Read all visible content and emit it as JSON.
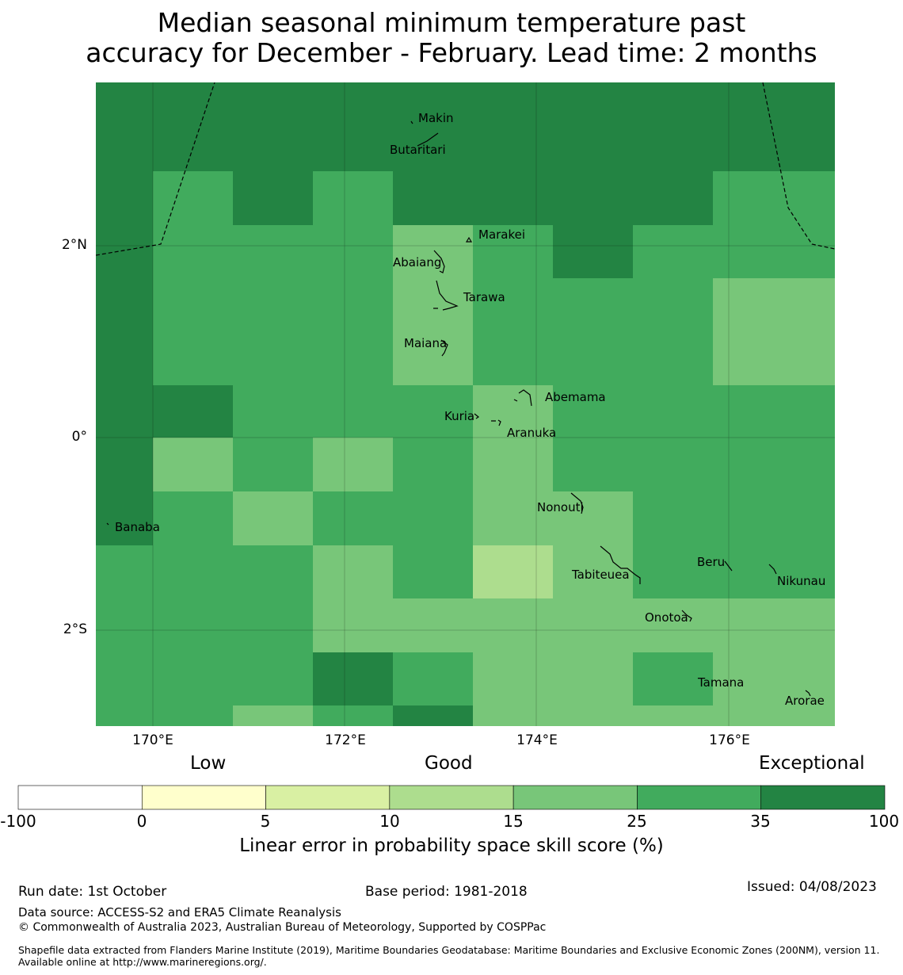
{
  "title_line1": "Median seasonal minimum temperature past",
  "title_line2": "accuracy for December - February. Lead time: 2 months",
  "map": {
    "x_ticks": [
      "170°E",
      "172°E",
      "174°E",
      "176°E"
    ],
    "y_ticks": [
      "2°N",
      "0°",
      "2°S"
    ],
    "cell_values": [
      [
        6,
        6,
        6,
        6,
        6,
        6,
        6,
        6,
        6
      ],
      [
        6,
        5,
        6,
        5,
        6,
        6,
        6,
        6,
        5
      ],
      [
        6,
        5,
        5,
        5,
        4,
        5,
        6,
        5,
        5
      ],
      [
        6,
        5,
        5,
        5,
        4,
        5,
        5,
        5,
        4
      ],
      [
        6,
        5,
        5,
        5,
        4,
        5,
        5,
        5,
        4
      ],
      [
        6,
        6,
        5,
        5,
        5,
        4,
        5,
        5,
        5
      ],
      [
        6,
        4,
        5,
        4,
        5,
        4,
        5,
        5,
        5
      ],
      [
        6,
        5,
        4,
        5,
        5,
        4,
        4,
        5,
        5
      ],
      [
        5,
        5,
        5,
        4,
        5,
        3,
        4,
        5,
        5
      ],
      [
        5,
        5,
        5,
        4,
        4,
        4,
        4,
        4,
        4
      ],
      [
        5,
        5,
        5,
        6,
        5,
        4,
        4,
        5,
        4
      ],
      [
        5,
        5,
        4,
        5,
        6,
        4,
        4,
        4,
        4
      ]
    ],
    "islands": [
      {
        "name": "Makin"
      },
      {
        "name": "Butaritari"
      },
      {
        "name": "Marakei"
      },
      {
        "name": "Abaiang"
      },
      {
        "name": "Tarawa"
      },
      {
        "name": "Maiana"
      },
      {
        "name": "Abemama"
      },
      {
        "name": "Kuria"
      },
      {
        "name": "Aranuka"
      },
      {
        "name": "Nonouti"
      },
      {
        "name": "Banaba"
      },
      {
        "name": "Beru"
      },
      {
        "name": "Tabiteuea"
      },
      {
        "name": "Nikunau"
      },
      {
        "name": "Onotoa"
      },
      {
        "name": "Tamana"
      },
      {
        "name": "Arorae"
      }
    ]
  },
  "legend": {
    "categories": [
      "Low",
      "Good",
      "Exceptional"
    ],
    "bounds": [
      "-100",
      "0",
      "5",
      "10",
      "15",
      "25",
      "35",
      "100"
    ],
    "colors": [
      "#ffffff",
      "#ffffcc",
      "#d9f0a3",
      "#addd8e",
      "#78c679",
      "#41ab5d",
      "#238443"
    ],
    "title": "Linear error in probability space skill score (%)"
  },
  "footer": {
    "run_date": "Run date: 1st October",
    "base_period": "Base period: 1981-2018",
    "issued": "Issued: 04/08/2023",
    "data_source": "Data source: ACCESS-S2 and ERA5 Climate Reanalysis",
    "copyright": "© Commonwealth of Australia 2023, Australian Bureau of Meteorology, Supported by COSPPac",
    "shapefile": "Shapefile data extracted from Flanders Marine Institute (2019), Maritime Boundaries Geodatabase: Maritime Boundaries and Exclusive Economic Zones (200NM), version 11. Available online at http://www.marineregions.org/."
  }
}
